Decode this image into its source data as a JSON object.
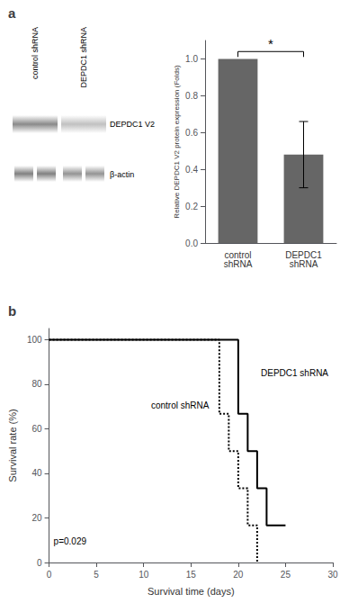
{
  "chart_data": [
    {
      "type": "bar",
      "title": "a",
      "categories": [
        "control\nshRNA",
        "DEPDC1\nshRNA"
      ],
      "values": [
        1.0,
        0.48
      ],
      "errors": [
        0.0,
        0.18
      ],
      "color": "#666666",
      "ylabel": "Relative DEPDC1 V2 protein expression (Folds)",
      "ylim": [
        0,
        1.1
      ],
      "yticks": [
        {
          "value": 0,
          "label": "0.0"
        },
        0.2,
        0.4,
        0.6,
        0.8,
        {
          "value": 1.0,
          "label": "1.0"
        }
      ],
      "grid": false,
      "significance": "*",
      "blot_lane_labels": [
        "control shRNA",
        "DEPDC1 shRNA"
      ],
      "blot_band_labels": [
        "DEPDC1 V2",
        "β-actin"
      ]
    },
    {
      "type": "line",
      "title": "b",
      "xlabel": "Survival time (days)",
      "ylabel": "Survival rate (%)",
      "xlim": [
        0,
        30
      ],
      "ylim": [
        0,
        105
      ],
      "xticks": [
        0,
        5,
        10,
        15,
        20,
        25,
        30
      ],
      "yticks": [
        0,
        20,
        40,
        60,
        80,
        100
      ],
      "grid": false,
      "series": [
        {
          "name": "control shRNA",
          "color": "#000000",
          "line_style": "dotted",
          "x": [
            0,
            18,
            18,
            19,
            19,
            20,
            20,
            21,
            21,
            22,
            22
          ],
          "values": [
            100,
            100,
            66.7,
            66.7,
            50,
            50,
            33.3,
            33.3,
            16.7,
            16.7,
            0
          ]
        },
        {
          "name": "DEPDC1 shRNA",
          "color": "#000000",
          "line_style": "solid",
          "x": [
            0,
            20,
            20,
            21,
            21,
            22,
            22,
            23,
            23,
            25,
            25
          ],
          "values": [
            100,
            100,
            66.7,
            66.7,
            50,
            50,
            33.3,
            33.3,
            16.7,
            16.7,
            16.7
          ]
        }
      ],
      "annotations": [
        "p=0.029"
      ]
    }
  ]
}
